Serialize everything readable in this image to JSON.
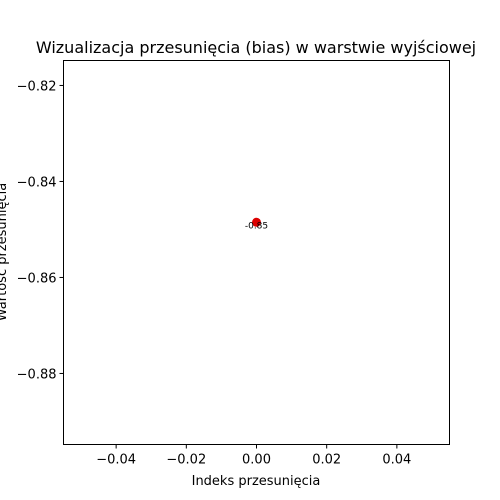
{
  "chart_data": {
    "type": "scatter",
    "title": "Wizualizacja przesunięcia (bias) w warstwie wyjściowej",
    "xlabel": "Indeks przesunięcia",
    "ylabel": "Wartość przesunięcia",
    "xlim": [
      -0.055,
      0.055
    ],
    "ylim": [
      -0.8948,
      -0.8148
    ],
    "xticks": [
      -0.04,
      -0.02,
      0.0,
      0.02,
      0.04
    ],
    "xtick_labels": [
      "−0.04",
      "−0.02",
      "0.00",
      "0.02",
      "0.04"
    ],
    "yticks": [
      -0.82,
      -0.84,
      -0.86,
      -0.88
    ],
    "ytick_labels": [
      "−0.82",
      "−0.84",
      "−0.86",
      "−0.88"
    ],
    "grid": false,
    "points": [
      {
        "x": 0,
        "y": -0.8485,
        "label": "-0.85",
        "color": "#dd0000"
      }
    ]
  }
}
